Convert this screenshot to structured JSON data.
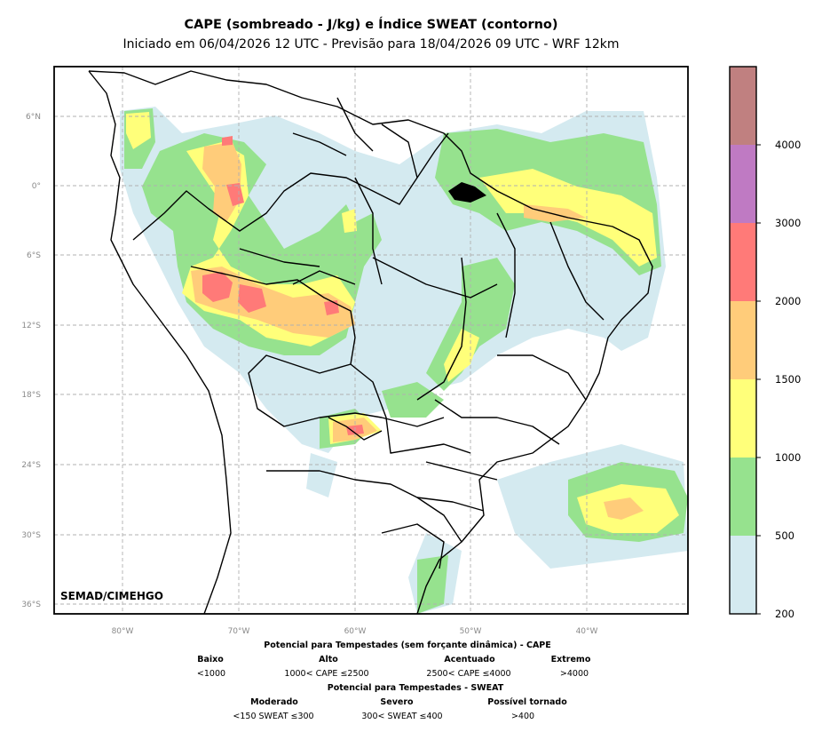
{
  "title": "CAPE (sombreado - J/kg) e Índice SWEAT (contorno)",
  "subtitle": "Iniciado em 06/04/2026 12 UTC - Previsão para 18/04/2026 09 UTC - WRF 12km",
  "credit": "SEMAD/CIMEHGO",
  "lat_ticks": [
    "6°N",
    "0°",
    "6°S",
    "12°S",
    "18°S",
    "24°S",
    "30°S",
    "36°S"
  ],
  "lon_ticks": [
    "80°W",
    "70°W",
    "60°W",
    "50°W",
    "40°W"
  ],
  "colorbar": {
    "labels": [
      "200",
      "500",
      "1000",
      "1500",
      "2000",
      "3000",
      "4000"
    ],
    "colors": [
      "#d4eaf0",
      "#96e28e",
      "#ffff7a",
      "#ffcc7a",
      "#ff7a78",
      "#bf7ac3",
      "#c08080"
    ]
  },
  "legend": {
    "cape_title": "Potencial para Tempestades (sem forçante dinâmica) - CAPE",
    "cape_cats": [
      {
        "name": "Baixo",
        "range": "<1000"
      },
      {
        "name": "Alto",
        "range": "1000< CAPE ≤2500"
      },
      {
        "name": "Acentuado",
        "range": "2500< CAPE ≤4000"
      },
      {
        "name": "Extremo",
        "range": ">4000"
      }
    ],
    "sweat_title": "Potencial para Tempestades - SWEAT",
    "sweat_cats": [
      {
        "name": "Moderado",
        "range": "<150 SWEAT ≤300"
      },
      {
        "name": "Severo",
        "range": "300< SWEAT ≤400"
      },
      {
        "name": "Possível tornado",
        "range": ">400"
      }
    ]
  }
}
